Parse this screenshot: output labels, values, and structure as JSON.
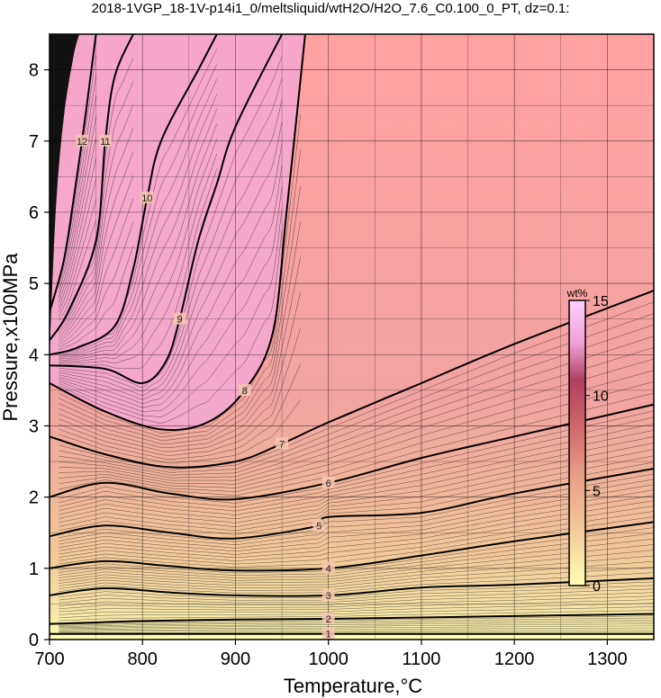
{
  "chart_data": {
    "type": "heatmap",
    "title": "2018-1VGP_18-1V-p14i1_0/meltsliquid/wtH2O/H2O_7.6_C0.100_0_PT, dz=0.1:",
    "xlabel": "Temperature,°C",
    "ylabel": "Pressure,x100MPa",
    "xlim": [
      700,
      1350
    ],
    "ylim": [
      0,
      8.5
    ],
    "x_ticks": [
      700,
      800,
      900,
      1000,
      1100,
      1200,
      1300
    ],
    "y_ticks": [
      0,
      1,
      2,
      3,
      4,
      5,
      6,
      7,
      8
    ],
    "grid": true,
    "colorbar": {
      "unit": "wt%",
      "range": [
        0,
        15
      ],
      "ticks": [
        0,
        5,
        10,
        15
      ],
      "colors": [
        "#ffffb4",
        "#f2c89a",
        "#e89a86",
        "#d06a6a",
        "#f0a0d8",
        "#ffd0ff"
      ]
    },
    "contour_levels": [
      {
        "value": 1,
        "label": "1",
        "points": [
          [
            700,
            0.08
          ],
          [
            800,
            0.08
          ],
          [
            900,
            0.08
          ],
          [
            1000,
            0.08
          ],
          [
            1100,
            0.08
          ],
          [
            1200,
            0.08
          ],
          [
            1350,
            0.08
          ]
        ]
      },
      {
        "value": 2,
        "label": "2",
        "points": [
          [
            700,
            0.22
          ],
          [
            750,
            0.24
          ],
          [
            800,
            0.26
          ],
          [
            900,
            0.28
          ],
          [
            1000,
            0.29
          ],
          [
            1100,
            0.31
          ],
          [
            1200,
            0.33
          ],
          [
            1350,
            0.36
          ]
        ]
      },
      {
        "value": 3,
        "label": "3",
        "points": [
          [
            700,
            0.62
          ],
          [
            760,
            0.72
          ],
          [
            830,
            0.66
          ],
          [
            900,
            0.62
          ],
          [
            1000,
            0.62
          ],
          [
            1100,
            0.73
          ],
          [
            1200,
            0.77
          ],
          [
            1350,
            0.86
          ]
        ]
      },
      {
        "value": 4,
        "label": "4",
        "points": [
          [
            700,
            1.0
          ],
          [
            760,
            1.1
          ],
          [
            830,
            1.03
          ],
          [
            900,
            0.97
          ],
          [
            1000,
            1.0
          ],
          [
            1100,
            1.18
          ],
          [
            1200,
            1.38
          ],
          [
            1350,
            1.65
          ]
        ]
      },
      {
        "value": 5,
        "label": "5",
        "points": [
          [
            700,
            1.45
          ],
          [
            760,
            1.6
          ],
          [
            830,
            1.5
          ],
          [
            900,
            1.42
          ],
          [
            990,
            1.6
          ],
          [
            1000,
            1.72
          ],
          [
            1100,
            1.78
          ],
          [
            1200,
            2.05
          ],
          [
            1350,
            2.4
          ]
        ]
      },
      {
        "value": 6,
        "label": "6",
        "points": [
          [
            700,
            2.0
          ],
          [
            760,
            2.2
          ],
          [
            830,
            2.05
          ],
          [
            900,
            1.97
          ],
          [
            1000,
            2.2
          ],
          [
            1100,
            2.55
          ],
          [
            1200,
            2.85
          ],
          [
            1350,
            3.3
          ]
        ]
      },
      {
        "value": 7,
        "label": "7",
        "points": [
          [
            700,
            2.85
          ],
          [
            760,
            2.6
          ],
          [
            830,
            2.42
          ],
          [
            900,
            2.5
          ],
          [
            950,
            2.75
          ],
          [
            1000,
            3.05
          ],
          [
            1100,
            3.6
          ],
          [
            1200,
            4.15
          ],
          [
            1350,
            4.9
          ]
        ]
      },
      {
        "value": 8,
        "label": "8",
        "points": [
          [
            700,
            3.6
          ],
          [
            760,
            3.2
          ],
          [
            820,
            2.95
          ],
          [
            870,
            3.05
          ],
          [
            910,
            3.5
          ],
          [
            940,
            4.3
          ],
          [
            955,
            6.0
          ],
          [
            975,
            8.5
          ]
        ]
      },
      {
        "value": 9,
        "label": "9",
        "points": [
          [
            700,
            3.85
          ],
          [
            760,
            3.8
          ],
          [
            800,
            3.6
          ],
          [
            825,
            3.9
          ],
          [
            840,
            4.5
          ],
          [
            860,
            5.6
          ],
          [
            880,
            6.4
          ],
          [
            900,
            7.2
          ],
          [
            950,
            8.5
          ]
        ]
      },
      {
        "value": 10,
        "label": "10",
        "points": [
          [
            700,
            4.0
          ],
          [
            730,
            4.1
          ],
          [
            770,
            4.4
          ],
          [
            790,
            5.2
          ],
          [
            805,
            6.2
          ],
          [
            820,
            7.0
          ],
          [
            860,
            8.0
          ],
          [
            880,
            8.5
          ]
        ]
      },
      {
        "value": 11,
        "label": "11",
        "points": [
          [
            700,
            4.2
          ],
          [
            720,
            4.6
          ],
          [
            750,
            5.6
          ],
          [
            760,
            7.0
          ],
          [
            770,
            7.9
          ],
          [
            790,
            8.5
          ]
        ]
      },
      {
        "value": 12,
        "label": "12",
        "points": [
          [
            700,
            4.6
          ],
          [
            715,
            5.3
          ],
          [
            725,
            6.1
          ],
          [
            735,
            7.0
          ],
          [
            745,
            8.0
          ],
          [
            750,
            8.5
          ]
        ]
      }
    ]
  }
}
